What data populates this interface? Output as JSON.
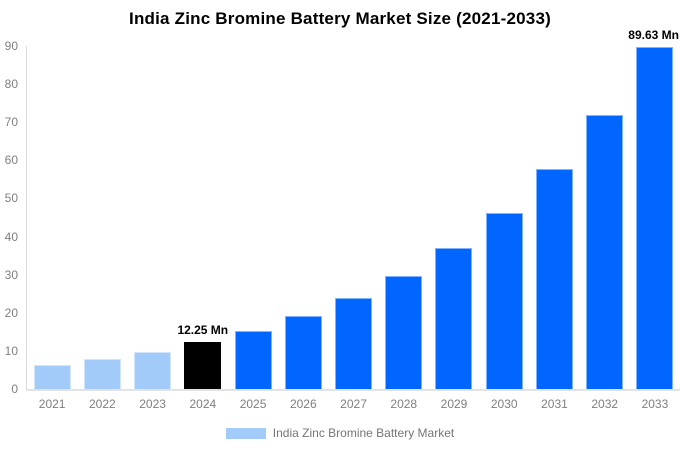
{
  "title": "India Zinc Bromine Battery Market Size (2021-2033)",
  "chart_data": {
    "type": "bar",
    "title": "India Zinc Bromine Battery Market Size (2021-2033)",
    "categories": [
      "2021",
      "2022",
      "2023",
      "2024",
      "2025",
      "2026",
      "2027",
      "2028",
      "2029",
      "2030",
      "2031",
      "2032",
      "2033"
    ],
    "series": [
      {
        "name": "India Zinc Bromine Battery Market",
        "values": [
          6.3,
          7.86,
          9.81,
          12.25,
          15.28,
          19.07,
          23.79,
          29.68,
          37.03,
          46.19,
          57.62,
          71.88,
          89.63
        ]
      }
    ],
    "unit": "Mn",
    "xlabel": "",
    "ylabel": "",
    "ylim": [
      0,
      90
    ],
    "yticks": [
      0,
      10,
      20,
      30,
      40,
      50,
      60,
      70,
      80,
      90
    ],
    "grid": false,
    "legend_position": "bottom",
    "annotations": [
      {
        "category": "2024",
        "text": "12.25 Mn"
      },
      {
        "category": "2033",
        "text": "89.63 Mn"
      }
    ],
    "bar_styles": [
      "historical",
      "historical",
      "historical",
      "highlight",
      "forecast",
      "forecast",
      "forecast",
      "forecast",
      "forecast",
      "forecast",
      "forecast",
      "forecast",
      "forecast"
    ],
    "colors": {
      "historical": "#a3cbf9",
      "highlight": "#000000",
      "forecast": "#0066ff"
    }
  },
  "legend": {
    "label": "India Zinc Bromine Battery Market",
    "swatch_color": "#a3cbf9"
  }
}
